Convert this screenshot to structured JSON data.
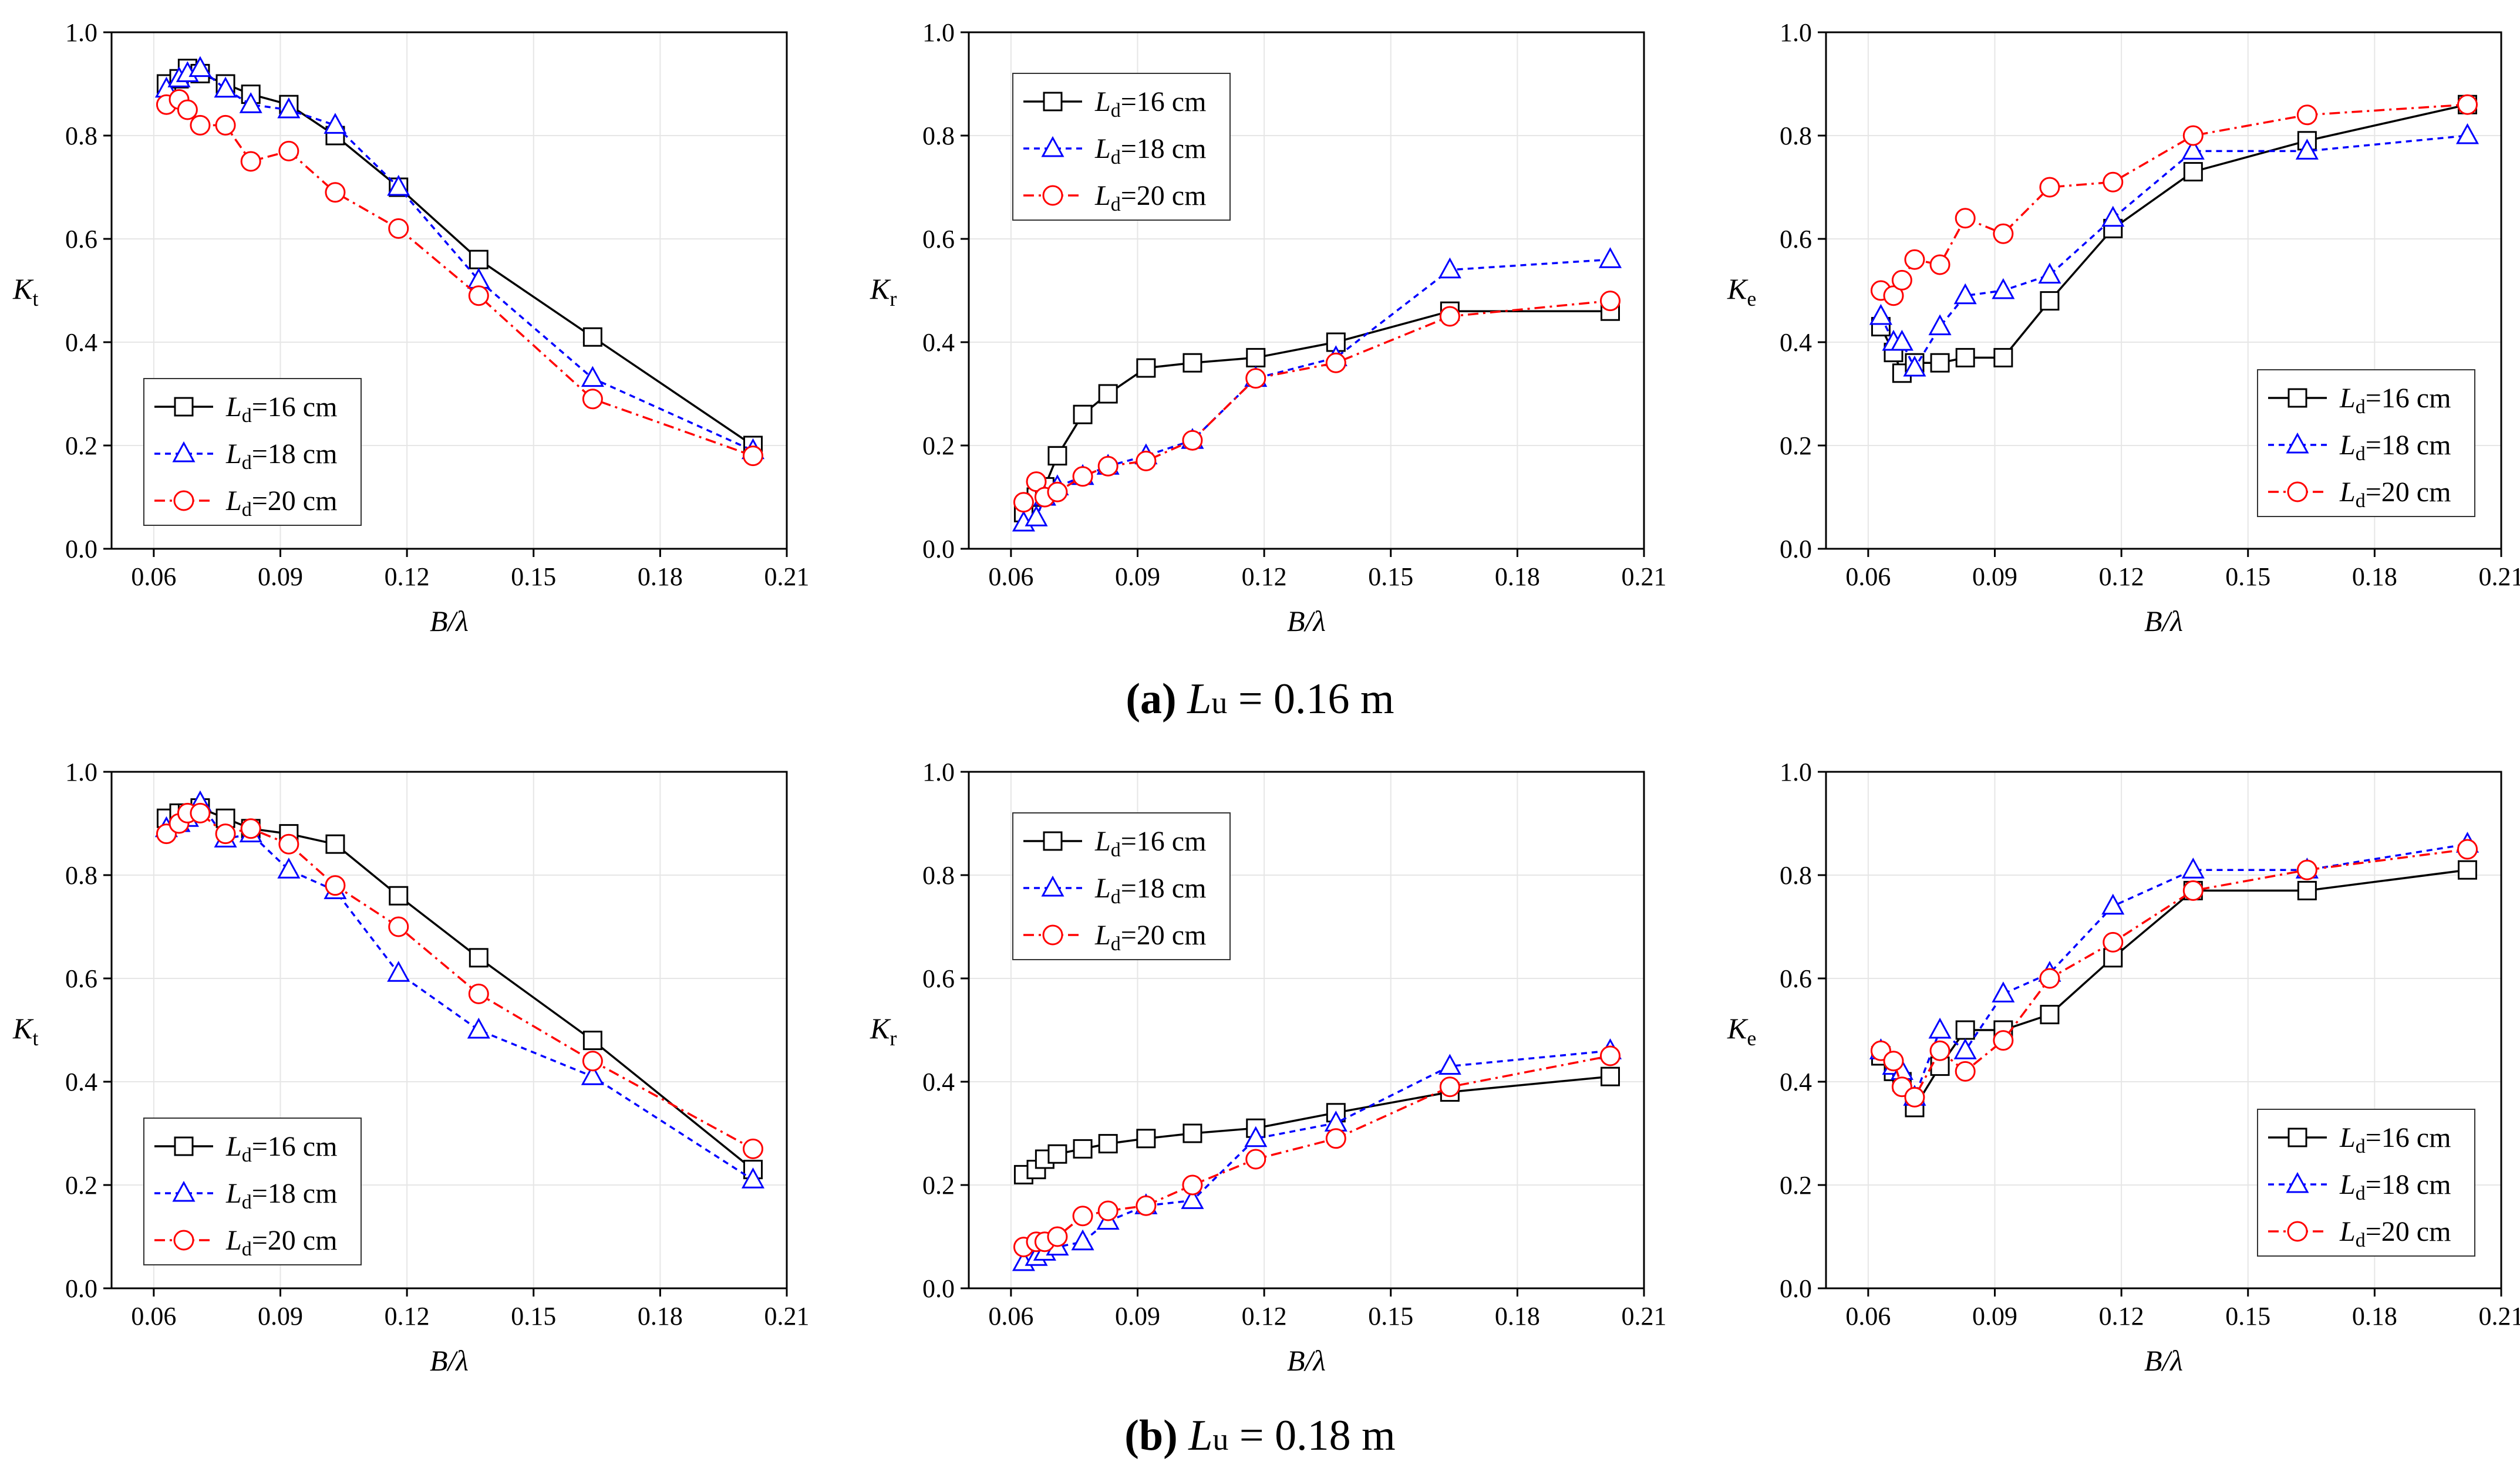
{
  "figure": {
    "captions": [
      {
        "label": "(a)",
        "symbol": "L",
        "subscript": "u",
        "text": " = 0.16 m"
      },
      {
        "label": "(b)",
        "symbol": "L",
        "subscript": "u",
        "text": " = 0.18 m"
      }
    ]
  },
  "styles": {
    "series_colors": [
      "#000000",
      "#0000ff",
      "#ff0000"
    ],
    "series_dashes": [
      "",
      "10,8",
      "18,8,4,8"
    ],
    "series_markers": [
      "square",
      "triangle",
      "circle"
    ]
  },
  "chart_data": [
    {
      "type": "line",
      "row": 0,
      "col": 0,
      "ylabel": {
        "symbol": "K",
        "sub": "t"
      },
      "xlabel": "B/λ",
      "xlim": [
        0.05,
        0.21
      ],
      "ylim": [
        0,
        1.0
      ],
      "xticks": [
        "0.06",
        "0.09",
        "0.12",
        "0.15",
        "0.18",
        "0.21"
      ],
      "yticks": [
        "0.0",
        "0.2",
        "0.4",
        "0.6",
        "0.8",
        "1.0"
      ],
      "legend_position": "bottom-left",
      "series": [
        {
          "name": "L",
          "sub": "d",
          "label": "=16 cm",
          "x": [
            0.063,
            0.066,
            0.068,
            0.071,
            0.077,
            0.083,
            0.092,
            0.103,
            0.118,
            0.137,
            0.164,
            0.202
          ],
          "y": [
            0.9,
            0.91,
            0.93,
            0.92,
            0.9,
            0.88,
            0.86,
            0.8,
            0.7,
            0.56,
            0.41,
            0.2
          ]
        },
        {
          "name": "L",
          "sub": "d",
          "label": "=18 cm",
          "x": [
            0.063,
            0.066,
            0.068,
            0.071,
            0.077,
            0.083,
            0.092,
            0.103,
            0.118,
            0.137,
            0.164,
            0.202
          ],
          "y": [
            0.89,
            0.91,
            0.92,
            0.93,
            0.89,
            0.86,
            0.85,
            0.82,
            0.7,
            0.52,
            0.33,
            0.19
          ]
        },
        {
          "name": "L",
          "sub": "d",
          "label": "=20 cm",
          "x": [
            0.063,
            0.066,
            0.068,
            0.071,
            0.077,
            0.083,
            0.092,
            0.103,
            0.118,
            0.137,
            0.164,
            0.202
          ],
          "y": [
            0.86,
            0.87,
            0.85,
            0.82,
            0.82,
            0.75,
            0.77,
            0.69,
            0.62,
            0.49,
            0.29,
            0.18
          ]
        }
      ]
    },
    {
      "type": "line",
      "row": 0,
      "col": 1,
      "ylabel": {
        "symbol": "K",
        "sub": "r"
      },
      "xlabel": "B/λ",
      "xlim": [
        0.05,
        0.21
      ],
      "ylim": [
        0,
        1.0
      ],
      "xticks": [
        "0.06",
        "0.09",
        "0.12",
        "0.15",
        "0.18",
        "0.21"
      ],
      "yticks": [
        "0.0",
        "0.2",
        "0.4",
        "0.6",
        "0.8",
        "1.0"
      ],
      "legend_position": "top-left",
      "series": [
        {
          "name": "L",
          "sub": "d",
          "label": "=16 cm",
          "x": [
            0.063,
            0.066,
            0.068,
            0.071,
            0.077,
            0.083,
            0.092,
            0.103,
            0.118,
            0.137,
            0.164,
            0.202
          ],
          "y": [
            0.07,
            0.1,
            0.12,
            0.18,
            0.26,
            0.3,
            0.35,
            0.36,
            0.37,
            0.4,
            0.46,
            0.46
          ]
        },
        {
          "name": "L",
          "sub": "d",
          "label": "=18 cm",
          "x": [
            0.063,
            0.066,
            0.068,
            0.071,
            0.077,
            0.083,
            0.092,
            0.103,
            0.118,
            0.137,
            0.164,
            0.202
          ],
          "y": [
            0.05,
            0.06,
            0.1,
            0.12,
            0.14,
            0.16,
            0.18,
            0.21,
            0.33,
            0.37,
            0.54,
            0.56
          ]
        },
        {
          "name": "L",
          "sub": "d",
          "label": "=20 cm",
          "x": [
            0.063,
            0.066,
            0.068,
            0.071,
            0.077,
            0.083,
            0.092,
            0.103,
            0.118,
            0.137,
            0.164,
            0.202
          ],
          "y": [
            0.09,
            0.13,
            0.1,
            0.11,
            0.14,
            0.16,
            0.17,
            0.21,
            0.33,
            0.36,
            0.45,
            0.48
          ]
        }
      ]
    },
    {
      "type": "line",
      "row": 0,
      "col": 2,
      "ylabel": {
        "symbol": "K",
        "sub": "e"
      },
      "xlabel": "B/λ",
      "xlim": [
        0.05,
        0.21
      ],
      "ylim": [
        0,
        1.0
      ],
      "xticks": [
        "0.06",
        "0.09",
        "0.12",
        "0.15",
        "0.18",
        "0.21"
      ],
      "yticks": [
        "0.0",
        "0.2",
        "0.4",
        "0.6",
        "0.8",
        "1.0"
      ],
      "legend_position": "bottom-right",
      "series": [
        {
          "name": "L",
          "sub": "d",
          "label": "=16 cm",
          "x": [
            0.063,
            0.066,
            0.068,
            0.071,
            0.077,
            0.083,
            0.092,
            0.103,
            0.118,
            0.137,
            0.164,
            0.202
          ],
          "y": [
            0.43,
            0.38,
            0.34,
            0.36,
            0.36,
            0.37,
            0.37,
            0.48,
            0.62,
            0.73,
            0.79,
            0.86
          ]
        },
        {
          "name": "L",
          "sub": "d",
          "label": "=18 cm",
          "x": [
            0.063,
            0.066,
            0.068,
            0.071,
            0.077,
            0.083,
            0.092,
            0.103,
            0.118,
            0.137,
            0.164,
            0.202
          ],
          "y": [
            0.45,
            0.4,
            0.4,
            0.35,
            0.43,
            0.49,
            0.5,
            0.53,
            0.64,
            0.77,
            0.77,
            0.8
          ]
        },
        {
          "name": "L",
          "sub": "d",
          "label": "=20 cm",
          "x": [
            0.063,
            0.066,
            0.068,
            0.071,
            0.077,
            0.083,
            0.092,
            0.103,
            0.118,
            0.137,
            0.164,
            0.202
          ],
          "y": [
            0.5,
            0.49,
            0.52,
            0.56,
            0.55,
            0.64,
            0.61,
            0.7,
            0.71,
            0.8,
            0.84,
            0.86
          ]
        }
      ]
    },
    {
      "type": "line",
      "row": 1,
      "col": 0,
      "ylabel": {
        "symbol": "K",
        "sub": "t"
      },
      "xlabel": "B/λ",
      "xlim": [
        0.05,
        0.21
      ],
      "ylim": [
        0,
        1.0
      ],
      "xticks": [
        "0.06",
        "0.09",
        "0.12",
        "0.15",
        "0.18",
        "0.21"
      ],
      "yticks": [
        "0.0",
        "0.2",
        "0.4",
        "0.6",
        "0.8",
        "1.0"
      ],
      "legend_position": "bottom-left",
      "series": [
        {
          "name": "L",
          "sub": "d",
          "label": "=16 cm",
          "x": [
            0.063,
            0.066,
            0.068,
            0.071,
            0.077,
            0.083,
            0.092,
            0.103,
            0.118,
            0.137,
            0.164,
            0.202
          ],
          "y": [
            0.91,
            0.92,
            0.92,
            0.93,
            0.91,
            0.89,
            0.88,
            0.86,
            0.76,
            0.64,
            0.48,
            0.23
          ]
        },
        {
          "name": "L",
          "sub": "d",
          "label": "=18 cm",
          "x": [
            0.063,
            0.066,
            0.068,
            0.071,
            0.077,
            0.083,
            0.092,
            0.103,
            0.118,
            0.137,
            0.164,
            0.202
          ],
          "y": [
            0.89,
            0.9,
            0.91,
            0.94,
            0.87,
            0.88,
            0.81,
            0.77,
            0.61,
            0.5,
            0.41,
            0.21
          ]
        },
        {
          "name": "L",
          "sub": "d",
          "label": "=20 cm",
          "x": [
            0.063,
            0.066,
            0.068,
            0.071,
            0.077,
            0.083,
            0.092,
            0.103,
            0.118,
            0.137,
            0.164,
            0.202
          ],
          "y": [
            0.88,
            0.9,
            0.92,
            0.92,
            0.88,
            0.89,
            0.86,
            0.78,
            0.7,
            0.57,
            0.44,
            0.27
          ]
        }
      ]
    },
    {
      "type": "line",
      "row": 1,
      "col": 1,
      "ylabel": {
        "symbol": "K",
        "sub": "r"
      },
      "xlabel": "B/λ",
      "xlim": [
        0.05,
        0.21
      ],
      "ylim": [
        0,
        1.0
      ],
      "xticks": [
        "0.06",
        "0.09",
        "0.12",
        "0.15",
        "0.18",
        "0.21"
      ],
      "yticks": [
        "0.0",
        "0.2",
        "0.4",
        "0.6",
        "0.8",
        "1.0"
      ],
      "legend_position": "top-left",
      "series": [
        {
          "name": "L",
          "sub": "d",
          "label": "=16 cm",
          "x": [
            0.063,
            0.066,
            0.068,
            0.071,
            0.077,
            0.083,
            0.092,
            0.103,
            0.118,
            0.137,
            0.164,
            0.202
          ],
          "y": [
            0.22,
            0.23,
            0.25,
            0.26,
            0.27,
            0.28,
            0.29,
            0.3,
            0.31,
            0.34,
            0.38,
            0.41
          ]
        },
        {
          "name": "L",
          "sub": "d",
          "label": "=18 cm",
          "x": [
            0.063,
            0.066,
            0.068,
            0.071,
            0.077,
            0.083,
            0.092,
            0.103,
            0.118,
            0.137,
            0.164,
            0.202
          ],
          "y": [
            0.05,
            0.06,
            0.07,
            0.08,
            0.09,
            0.13,
            0.16,
            0.17,
            0.29,
            0.32,
            0.43,
            0.46
          ]
        },
        {
          "name": "L",
          "sub": "d",
          "label": "=20 cm",
          "x": [
            0.063,
            0.066,
            0.068,
            0.071,
            0.077,
            0.083,
            0.092,
            0.103,
            0.118,
            0.137,
            0.164,
            0.202
          ],
          "y": [
            0.08,
            0.09,
            0.09,
            0.1,
            0.14,
            0.15,
            0.16,
            0.2,
            0.25,
            0.29,
            0.39,
            0.45
          ]
        }
      ]
    },
    {
      "type": "line",
      "row": 1,
      "col": 2,
      "ylabel": {
        "symbol": "K",
        "sub": "e"
      },
      "xlabel": "B/λ",
      "xlim": [
        0.05,
        0.21
      ],
      "ylim": [
        0,
        1.0
      ],
      "xticks": [
        "0.06",
        "0.09",
        "0.12",
        "0.15",
        "0.18",
        "0.21"
      ],
      "yticks": [
        "0.0",
        "0.2",
        "0.4",
        "0.6",
        "0.8",
        "1.0"
      ],
      "legend_position": "bottom-right",
      "series": [
        {
          "name": "L",
          "sub": "d",
          "label": "=16 cm",
          "x": [
            0.063,
            0.066,
            0.068,
            0.071,
            0.077,
            0.083,
            0.092,
            0.103,
            0.118,
            0.137,
            0.164,
            0.202
          ],
          "y": [
            0.45,
            0.42,
            0.4,
            0.35,
            0.43,
            0.5,
            0.5,
            0.53,
            0.64,
            0.77,
            0.77,
            0.81
          ]
        },
        {
          "name": "L",
          "sub": "d",
          "label": "=18 cm",
          "x": [
            0.063,
            0.066,
            0.068,
            0.071,
            0.077,
            0.083,
            0.092,
            0.103,
            0.118,
            0.137,
            0.164,
            0.202
          ],
          "y": [
            0.46,
            0.43,
            0.42,
            0.37,
            0.5,
            0.46,
            0.57,
            0.61,
            0.74,
            0.81,
            0.81,
            0.86
          ]
        },
        {
          "name": "L",
          "sub": "d",
          "label": "=20 cm",
          "x": [
            0.063,
            0.066,
            0.068,
            0.071,
            0.077,
            0.083,
            0.092,
            0.103,
            0.118,
            0.137,
            0.164,
            0.202
          ],
          "y": [
            0.46,
            0.44,
            0.39,
            0.37,
            0.46,
            0.42,
            0.48,
            0.6,
            0.67,
            0.77,
            0.81,
            0.85
          ]
        }
      ]
    }
  ]
}
